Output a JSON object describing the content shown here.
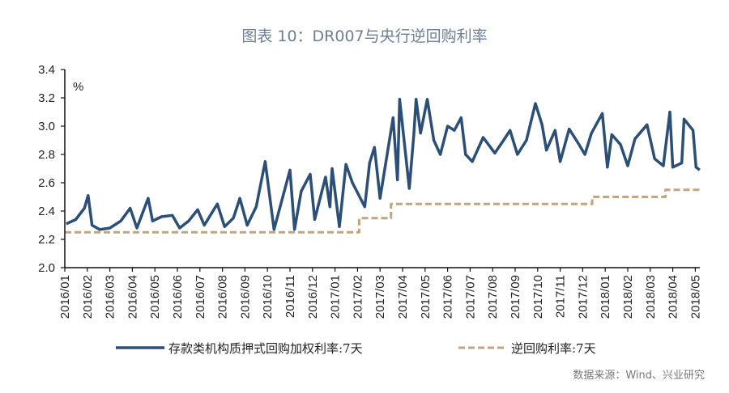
{
  "chart_data": {
    "type": "line",
    "title": "图表 10：DR007与央行逆回购利率",
    "ylabel": "%",
    "ylim": [
      2.0,
      3.4
    ],
    "yticks": [
      "2.0",
      "2.2",
      "2.4",
      "2.6",
      "2.8",
      "3.0",
      "3.2",
      "3.4"
    ],
    "xticks": [
      "2016/01",
      "2016/02",
      "2016/03",
      "2016/04",
      "2016/05",
      "2016/06",
      "2016/07",
      "2016/08",
      "2016/09",
      "2016/10",
      "2016/11",
      "2016/12",
      "2017/01",
      "2017/02",
      "2017/03",
      "2017/04",
      "2017/05",
      "2017/06",
      "2017/07",
      "2017/08",
      "2017/09",
      "2017/10",
      "2017/11",
      "2017/12",
      "2018/01",
      "2018/02",
      "2018/03",
      "2018/04",
      "2018/05"
    ],
    "grid": false,
    "legend_placement": "bottom",
    "source": "数据来源：Wind、兴业研究",
    "series": [
      {
        "name": "存款类机构质押式回购加权利率:7天",
        "color": "#2b4f76",
        "style": "solid",
        "x": [
          "2016-01-03",
          "2016-01-16",
          "2016-01-28",
          "2016-02-02",
          "2016-02-07",
          "2016-02-17",
          "2016-03-01",
          "2016-03-16",
          "2016-03-29",
          "2016-04-07",
          "2016-04-22",
          "2016-04-28",
          "2016-05-10",
          "2016-05-25",
          "2016-06-04",
          "2016-06-16",
          "2016-06-28",
          "2016-07-07",
          "2016-07-25",
          "2016-08-04",
          "2016-08-16",
          "2016-08-25",
          "2016-09-04",
          "2016-09-16",
          "2016-09-28",
          "2016-10-10",
          "2016-11-01",
          "2016-11-07",
          "2016-11-16",
          "2016-11-28",
          "2016-12-04",
          "2016-12-19",
          "2016-12-25",
          "2016-12-28",
          "2017-01-07",
          "2017-01-16",
          "2017-01-25",
          "2017-02-10",
          "2017-02-16",
          "2017-02-22",
          "2017-03-01",
          "2017-03-19",
          "2017-03-25",
          "2017-03-28",
          "2017-04-10",
          "2017-04-16",
          "2017-04-19",
          "2017-04-25",
          "2017-05-04",
          "2017-05-13",
          "2017-05-22",
          "2017-06-01",
          "2017-06-10",
          "2017-06-19",
          "2017-06-25",
          "2017-07-04",
          "2017-07-19",
          "2017-08-04",
          "2017-08-16",
          "2017-08-25",
          "2017-09-04",
          "2017-09-16",
          "2017-09-28",
          "2017-10-07",
          "2017-10-13",
          "2017-10-25",
          "2017-11-01",
          "2017-11-13",
          "2017-11-25",
          "2017-12-04",
          "2017-12-13",
          "2017-12-28",
          "2018-01-04",
          "2018-01-10",
          "2018-01-22",
          "2018-02-01",
          "2018-02-10",
          "2018-02-25",
          "2018-03-07",
          "2018-03-19",
          "2018-03-28",
          "2018-04-01",
          "2018-04-13",
          "2018-04-16",
          "2018-04-28",
          "2018-05-02",
          "2018-05-07"
        ],
        "values": [
          2.31,
          2.34,
          2.42,
          2.51,
          2.3,
          2.27,
          2.28,
          2.33,
          2.42,
          2.28,
          2.49,
          2.33,
          2.36,
          2.37,
          2.28,
          2.33,
          2.41,
          2.3,
          2.45,
          2.29,
          2.35,
          2.49,
          2.3,
          2.43,
          2.75,
          2.27,
          2.69,
          2.27,
          2.54,
          2.66,
          2.34,
          2.64,
          2.43,
          2.7,
          2.29,
          2.73,
          2.6,
          2.43,
          2.74,
          2.85,
          2.49,
          3.06,
          2.62,
          3.19,
          2.56,
          2.94,
          3.19,
          2.95,
          3.19,
          2.9,
          2.8,
          3.0,
          2.97,
          3.06,
          2.8,
          2.75,
          2.92,
          2.81,
          2.9,
          2.97,
          2.8,
          2.9,
          3.16,
          3.01,
          2.83,
          2.97,
          2.75,
          2.98,
          2.88,
          2.8,
          2.95,
          3.09,
          2.71,
          2.94,
          2.87,
          2.72,
          2.91,
          3.01,
          2.77,
          2.72,
          3.1,
          2.71,
          2.74,
          3.05,
          2.97,
          2.71,
          2.69
        ]
      },
      {
        "name": "逆回购利率:7天",
        "color": "#c2a57c",
        "style": "dashed",
        "step": true,
        "x": [
          "2016-01-01",
          "2017-02-03",
          "2017-03-16",
          "2017-12-14",
          "2018-03-22",
          "2018-05-07"
        ],
        "values": [
          2.25,
          2.35,
          2.45,
          2.5,
          2.55,
          2.55
        ]
      }
    ]
  }
}
